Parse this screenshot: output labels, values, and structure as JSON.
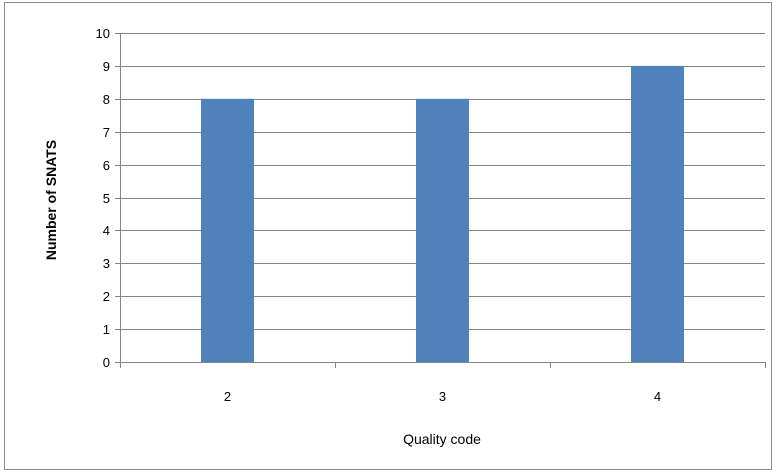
{
  "chart_data": {
    "type": "bar",
    "categories": [
      "2",
      "3",
      "4"
    ],
    "values": [
      8,
      8,
      9
    ],
    "title": "",
    "xlabel": "Quality code",
    "ylabel": "Number of SNATS",
    "ylim": [
      0,
      10
    ],
    "yticks": [
      "0",
      "1",
      "2",
      "3",
      "4",
      "5",
      "6",
      "7",
      "8",
      "9",
      "10"
    ],
    "grid": true,
    "legend": "none",
    "bar_color": "#4f81bd",
    "grid_color": "#868686"
  }
}
